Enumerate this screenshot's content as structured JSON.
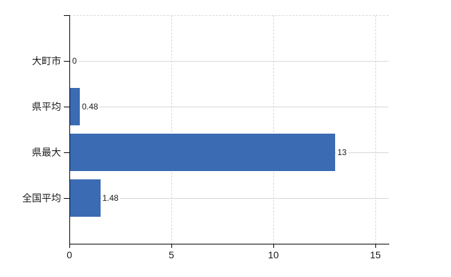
{
  "chart_data": {
    "type": "bar",
    "orientation": "horizontal",
    "title": "",
    "categories": [
      "大町市",
      "県平均",
      "県最大",
      "全国平均"
    ],
    "values": [
      0,
      0.48,
      13,
      1.48
    ],
    "value_labels": [
      "0",
      "0.48",
      "13",
      "1.48"
    ],
    "x_ticks": [
      0,
      5,
      10,
      15
    ],
    "x_tick_labels": [
      "0",
      "5",
      "10",
      "15"
    ],
    "xlim": [
      0,
      15
    ],
    "grid": true,
    "legend": false,
    "colors": {
      "bar": "#3b6bb3",
      "gridline": "#d7d7d7",
      "axis": "#000000",
      "text": "#1a1a1a",
      "background": "#ffffff"
    }
  }
}
